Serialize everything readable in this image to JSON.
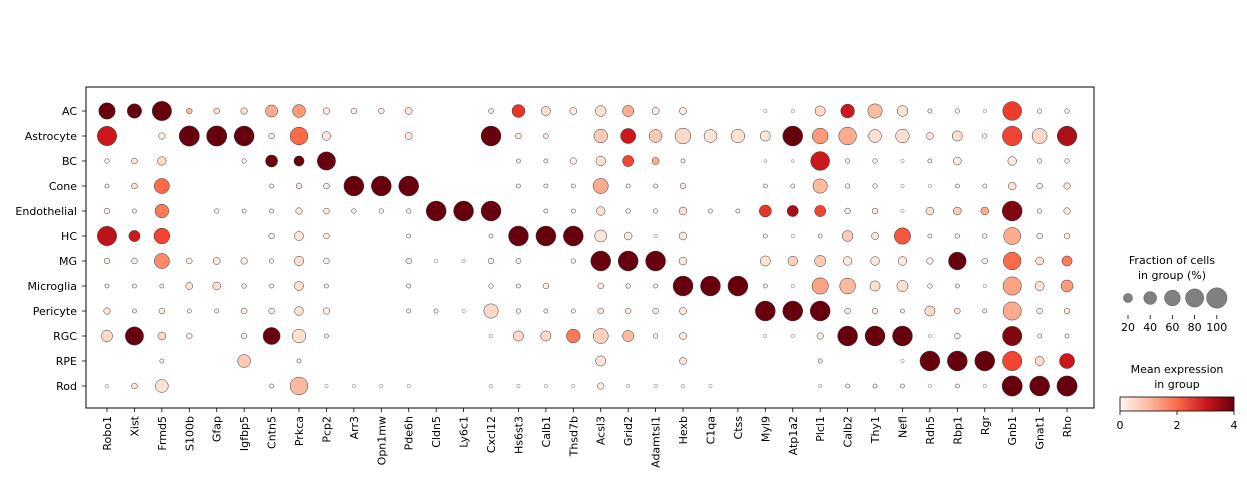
{
  "chart_data": {
    "type": "dotplot",
    "genes": [
      "Robo1",
      "Xist",
      "Frmd5",
      "S100b",
      "Gfap",
      "Igfbp5",
      "Cntn5",
      "Prkca",
      "Pcp2",
      "Arr3",
      "Opn1mw",
      "Pde6h",
      "Cldn5",
      "Ly6c1",
      "Cxcl12",
      "Hs6st3",
      "Calb1",
      "Thsd7b",
      "Acsl3",
      "Grid2",
      "Adamtsl1",
      "Hexb",
      "C1qa",
      "Ctss",
      "Myl9",
      "Atp1a2",
      "Plcl1",
      "Calb2",
      "Thy1",
      "Nefl",
      "Rdh5",
      "Rbp1",
      "Rgr",
      "Gnb1",
      "Gnat1",
      "Rho"
    ],
    "groups": [
      "AC",
      "Astrocyte",
      "BC",
      "Cone",
      "Endothelial",
      "HC",
      "MG",
      "Microglia",
      "Pericyte",
      "RGC",
      "RPE",
      "Rod"
    ],
    "fraction": [
      [
        65,
        50,
        90,
        8,
        8,
        10,
        35,
        40,
        10,
        8,
        8,
        12,
        0,
        0,
        6,
        40,
        20,
        12,
        28,
        30,
        12,
        12,
        0,
        0,
        3,
        3,
        25,
        45,
        50,
        28,
        4,
        5,
        3,
        85,
        5,
        5
      ],
      [
        90,
        0,
        10,
        98,
        98,
        95,
        8,
        75,
        18,
        0,
        0,
        12,
        0,
        0,
        95,
        8,
        6,
        0,
        45,
        55,
        40,
        60,
        40,
        45,
        25,
        95,
        60,
        75,
        40,
        45,
        12,
        25,
        5,
        92,
        55,
        92
      ],
      [
        5,
        8,
        18,
        0,
        0,
        5,
        35,
        25,
        80,
        0,
        0,
        0,
        0,
        0,
        0,
        4,
        4,
        10,
        22,
        30,
        12,
        4,
        0,
        0,
        2,
        2,
        85,
        5,
        5,
        3,
        4,
        15,
        0,
        18,
        5,
        5
      ],
      [
        4,
        8,
        55,
        0,
        0,
        0,
        4,
        8,
        8,
        95,
        95,
        95,
        0,
        0,
        0,
        4,
        4,
        4,
        55,
        4,
        4,
        8,
        0,
        0,
        4,
        4,
        50,
        5,
        5,
        3,
        3,
        4,
        4,
        15,
        8,
        10
      ],
      [
        8,
        4,
        45,
        0,
        5,
        4,
        4,
        10,
        8,
        5,
        5,
        5,
        95,
        95,
        95,
        0,
        4,
        4,
        18,
        5,
        5,
        15,
        4,
        4,
        35,
        30,
        30,
        8,
        8,
        3,
        15,
        15,
        15,
        95,
        5,
        10
      ],
      [
        90,
        30,
        60,
        0,
        0,
        0,
        8,
        20,
        8,
        0,
        0,
        4,
        0,
        0,
        4,
        95,
        95,
        95,
        35,
        15,
        3,
        15,
        0,
        0,
        4,
        3,
        4,
        28,
        12,
        65,
        4,
        5,
        5,
        70,
        8,
        8
      ],
      [
        8,
        8,
        55,
        8,
        12,
        10,
        5,
        22,
        8,
        0,
        0,
        8,
        3,
        3,
        8,
        6,
        0,
        5,
        95,
        95,
        95,
        15,
        0,
        0,
        25,
        22,
        30,
        18,
        18,
        18,
        10,
        75,
        8,
        75,
        15,
        25
      ],
      [
        4,
        4,
        4,
        12,
        15,
        5,
        4,
        20,
        4,
        0,
        0,
        4,
        0,
        0,
        5,
        4,
        8,
        0,
        8,
        5,
        4,
        95,
        95,
        95,
        4,
        3,
        65,
        60,
        25,
        30,
        5,
        4,
        3,
        80,
        20,
        35
      ],
      [
        10,
        4,
        8,
        4,
        4,
        8,
        8,
        18,
        10,
        0,
        0,
        4,
        4,
        3,
        50,
        5,
        4,
        4,
        8,
        8,
        8,
        12,
        0,
        0,
        95,
        95,
        95,
        8,
        8,
        4,
        25,
        8,
        4,
        80,
        8,
        8
      ],
      [
        30,
        80,
        15,
        8,
        0,
        8,
        70,
        45,
        4,
        0,
        0,
        0,
        0,
        0,
        3,
        25,
        25,
        45,
        55,
        30,
        5,
        12,
        0,
        0,
        3,
        3,
        10,
        95,
        95,
        95,
        3,
        8,
        0,
        90,
        4,
        4
      ],
      [
        0,
        0,
        4,
        0,
        0,
        40,
        0,
        4,
        0,
        0,
        0,
        0,
        0,
        0,
        0,
        0,
        0,
        0,
        25,
        0,
        0,
        12,
        0,
        0,
        0,
        0,
        4,
        0,
        0,
        3,
        95,
        95,
        95,
        90,
        20,
        55
      ],
      [
        3,
        8,
        40,
        0,
        0,
        0,
        4,
        75,
        3,
        3,
        3,
        3,
        0,
        0,
        3,
        3,
        3,
        3,
        10,
        3,
        3,
        3,
        3,
        0,
        0,
        0,
        3,
        4,
        4,
        4,
        3,
        4,
        3,
        98,
        95,
        98
      ]
    ],
    "mean_expression": [
      [
        4,
        4,
        4,
        1,
        0.5,
        0.5,
        1.2,
        1.4,
        0.3,
        0.2,
        0.2,
        0.3,
        0,
        0,
        0.3,
        2.6,
        0.5,
        0.2,
        0.5,
        1.2,
        0.2,
        0.2,
        0,
        0,
        0.1,
        0.1,
        0.6,
        3,
        1,
        0.5,
        0.1,
        0.1,
        0.1,
        2.5,
        0.1,
        0.1
      ],
      [
        3,
        0,
        0.2,
        4,
        4,
        4,
        0.3,
        2,
        0.3,
        0,
        0,
        0.3,
        0,
        0,
        4,
        0.3,
        0.1,
        0,
        0.8,
        3,
        0.8,
        0.6,
        0.4,
        0.5,
        0.3,
        4,
        1.4,
        1.2,
        0.5,
        0.5,
        0.3,
        0.5,
        0.1,
        2.4,
        0.6,
        3.4
      ],
      [
        0.1,
        0.3,
        0.6,
        0,
        0,
        0.1,
        4,
        4,
        4,
        0,
        0,
        0,
        0,
        0,
        0,
        0.1,
        0.1,
        0.1,
        0.5,
        2.4,
        1.2,
        0.1,
        0,
        0,
        0.1,
        0.1,
        3,
        0.1,
        0.1,
        0.1,
        0.1,
        0.2,
        0,
        0.3,
        0.1,
        0.1
      ],
      [
        0.1,
        0.5,
        2,
        0,
        0,
        0,
        0.1,
        0.3,
        0.2,
        4,
        4,
        4,
        0,
        0,
        0,
        0.1,
        0.1,
        0.1,
        1.2,
        0.1,
        0.1,
        0.3,
        0,
        0,
        0.1,
        0.1,
        1,
        0.1,
        0.1,
        0.1,
        0.1,
        0.1,
        0.1,
        0.5,
        0.3,
        0.4
      ],
      [
        0.1,
        0.1,
        1.8,
        0,
        0.1,
        0.1,
        0.1,
        0.3,
        0.2,
        0.1,
        0.1,
        0.1,
        4,
        4,
        4,
        0,
        0.1,
        0.1,
        0.5,
        0.1,
        0.1,
        0.5,
        0.1,
        0.1,
        2.6,
        3.5,
        2.4,
        0.2,
        0.2,
        0.1,
        0.5,
        0.8,
        1.2,
        3.8,
        0.1,
        0.2
      ],
      [
        3.2,
        3,
        2.4,
        0,
        0,
        0,
        0.2,
        0.4,
        0.2,
        0,
        0,
        0.1,
        0,
        0,
        0.1,
        4,
        4,
        4,
        0.4,
        0.3,
        0.1,
        0.3,
        0,
        0,
        0.1,
        0.1,
        0.1,
        0.8,
        0.3,
        2.2,
        0.1,
        0.1,
        0.2,
        1.2,
        0.2,
        0.2
      ],
      [
        0.2,
        0.2,
        1.6,
        0.2,
        0.3,
        0.2,
        0.1,
        0.5,
        0.1,
        0,
        0,
        0.2,
        0.1,
        0.1,
        0.1,
        0.1,
        0,
        0.1,
        4,
        4,
        4,
        0.3,
        0,
        0,
        0.5,
        0.7,
        0.8,
        0.3,
        0.3,
        0.3,
        0.1,
        4,
        0.1,
        2,
        0.5,
        1.8
      ],
      [
        0.1,
        0.1,
        0.1,
        0.4,
        0.5,
        0.1,
        0.1,
        0.5,
        0.1,
        0,
        0,
        0.1,
        0,
        0,
        0.1,
        0.1,
        0.2,
        0,
        0.2,
        0.2,
        0.1,
        4,
        4,
        4,
        0.1,
        0.1,
        1.3,
        1,
        0.5,
        0.5,
        0.1,
        0.1,
        0.1,
        1.3,
        0.4,
        1.4
      ],
      [
        0.3,
        0.1,
        0.2,
        0.1,
        0.1,
        0.2,
        0.2,
        0.5,
        0.2,
        0,
        0,
        0.1,
        0.1,
        0.1,
        0.6,
        0.1,
        0.1,
        0.1,
        0.3,
        0.2,
        0.2,
        0.3,
        0,
        0,
        4,
        4,
        4,
        0.2,
        0.2,
        0.1,
        0.6,
        0.3,
        0.1,
        1.2,
        0.2,
        0.3
      ],
      [
        0.6,
        4,
        0.6,
        0.2,
        0,
        0.2,
        4,
        0.5,
        0.1,
        0,
        0,
        0,
        0,
        0,
        0.1,
        0.6,
        0.6,
        1.8,
        0.7,
        1,
        0.2,
        0.3,
        0,
        0,
        0.1,
        0.1,
        0.2,
        4,
        4,
        4,
        0.1,
        0.2,
        0,
        3.8,
        0.1,
        0.1
      ],
      [
        0,
        0,
        0.1,
        0,
        0,
        0.8,
        0,
        0.2,
        0,
        0,
        0,
        0,
        0,
        0,
        0,
        0,
        0,
        0,
        0.4,
        0,
        0,
        0.4,
        0,
        0,
        0,
        0,
        0.3,
        0,
        0,
        0.1,
        4,
        4,
        4,
        2.4,
        0.6,
        3
      ],
      [
        0.1,
        0.3,
        0.4,
        0,
        0,
        0,
        0.1,
        1,
        0.1,
        0.1,
        0.1,
        0.1,
        0,
        0,
        0.1,
        0.1,
        0.1,
        0.1,
        0.2,
        0.1,
        0.1,
        0.1,
        0.1,
        0,
        0,
        0,
        0.2,
        0.2,
        0.1,
        0.2,
        0.1,
        0.1,
        0.1,
        4,
        4,
        4
      ]
    ],
    "size_legend": {
      "title_line1": "Fraction of cells",
      "title_line2": "in group (%)",
      "values": [
        20,
        40,
        60,
        80,
        100
      ]
    },
    "color_legend": {
      "title_line1": "Mean expression",
      "title_line2": "in group",
      "ticks": [
        0,
        2,
        4
      ],
      "min": 0,
      "max": 4,
      "colormap": "Reds",
      "color_low": "#fff5f0",
      "color_mid": "#ef3b2c",
      "color_high": "#67000d"
    },
    "size_legend_color": "#808080"
  }
}
